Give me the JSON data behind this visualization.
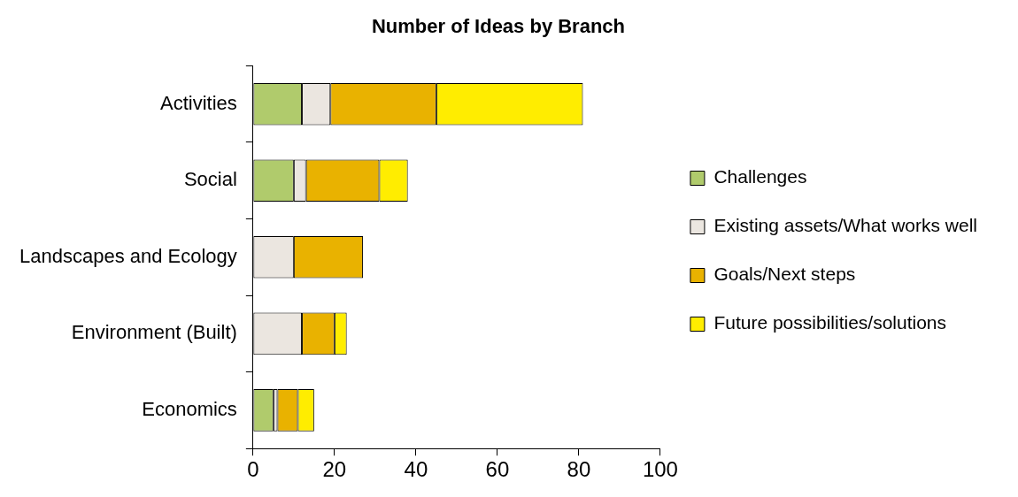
{
  "chart_data": {
    "type": "bar",
    "orientation": "horizontal",
    "stacked": true,
    "title": "Number of Ideas by Branch",
    "categories": [
      "Activities",
      "Social",
      "Landscapes and Ecology",
      "Environment (Built)",
      "Economics"
    ],
    "series": [
      {
        "name": "Challenges",
        "color": "#b0cb6c",
        "values": [
          12,
          10,
          0,
          0,
          5
        ]
      },
      {
        "name": "Existing assets/What works well",
        "color": "#ebe6e0",
        "values": [
          7,
          3,
          10,
          12,
          1
        ]
      },
      {
        "name": "Goals/Next steps",
        "color": "#e9b200",
        "values": [
          26,
          18,
          17,
          8,
          5
        ]
      },
      {
        "name": "Future possibilities/solutions",
        "color": "#ffed00",
        "values": [
          36,
          7,
          0,
          3,
          4
        ]
      }
    ],
    "xlim": [
      0,
      100
    ],
    "xticks": [
      0,
      20,
      40,
      60,
      80,
      100
    ],
    "grid": false,
    "legend": "right"
  }
}
